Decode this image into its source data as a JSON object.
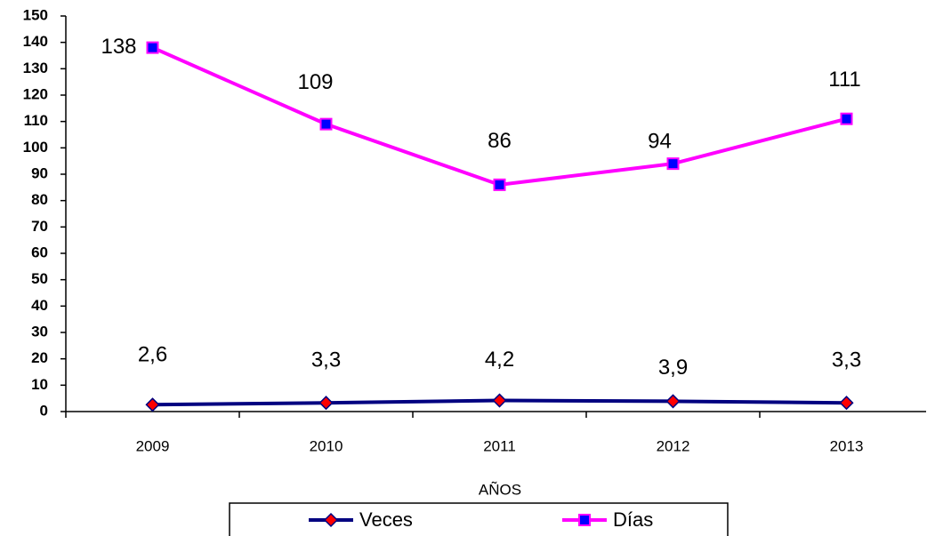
{
  "chart_data": {
    "type": "line",
    "x_label": "AÑOS",
    "categories": [
      "2009",
      "2010",
      "2011",
      "2012",
      "2013"
    ],
    "series": [
      {
        "name": "Veces",
        "color": "#000080",
        "marker_color": "#ff0000",
        "marker": "diamond",
        "values": [
          2.6,
          3.3,
          4.2,
          3.9,
          3.3
        ],
        "value_labels": [
          "2,6",
          "3,3",
          "4,2",
          "3,9",
          "3,3"
        ]
      },
      {
        "name": "Días",
        "color": "#ff00ff",
        "marker_color": "#0000ff",
        "marker": "square",
        "values": [
          138,
          109,
          86,
          94,
          111
        ]
      }
    ],
    "ylim": [
      0,
      150
    ],
    "yticks": [
      0,
      10,
      20,
      30,
      40,
      50,
      60,
      70,
      80,
      90,
      100,
      110,
      120,
      130,
      140,
      150
    ],
    "grid": false,
    "legend": "bottom"
  }
}
